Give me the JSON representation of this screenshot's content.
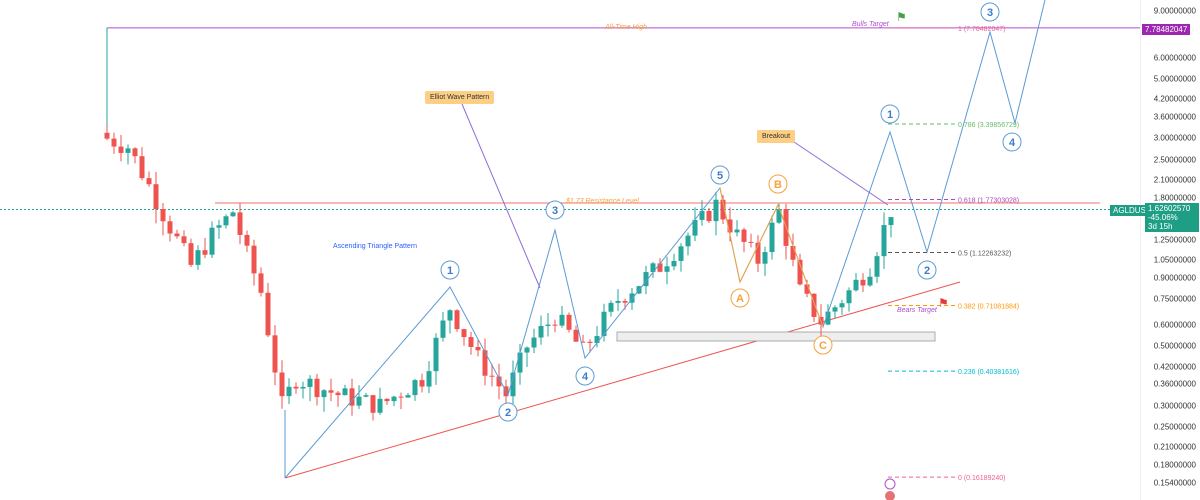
{
  "chart_data": {
    "type": "candlestick",
    "symbol": "AGLDUSD",
    "scale": "log",
    "ylim": [
      0.154,
      9.0
    ],
    "y_ticks": [
      "9.00000000",
      "6.00000000",
      "5.00000000",
      "4.20000000",
      "3.60000000",
      "3.00000000",
      "2.50000000",
      "2.10000000",
      "1.80000000",
      "1.25000000",
      "1.05000000",
      "0.90000000",
      "0.75000000",
      "0.60000000",
      "0.50000000",
      "0.42000000",
      "0.36000000",
      "0.30000000",
      "0.25000000",
      "0.21000000",
      "0.18000000",
      "0.15400000"
    ],
    "y_tick_values": [
      9,
      6,
      5,
      4.2,
      3.6,
      3,
      2.5,
      2.1,
      1.8,
      1.25,
      1.05,
      0.9,
      0.75,
      0.6,
      0.5,
      0.42,
      0.36,
      0.3,
      0.25,
      0.21,
      0.18,
      0.154
    ],
    "price_path": [
      [
        0,
        3.0
      ],
      [
        3,
        2.8
      ],
      [
        6,
        2.0
      ],
      [
        9,
        1.4
      ],
      [
        12,
        1.0
      ],
      [
        15,
        1.3
      ],
      [
        18,
        1.6
      ],
      [
        20,
        1.1
      ],
      [
        22,
        0.8
      ],
      [
        25,
        0.3
      ],
      [
        27,
        0.38
      ],
      [
        33,
        0.33
      ],
      [
        39,
        0.3
      ],
      [
        45,
        0.38
      ],
      [
        49,
        0.7
      ],
      [
        53,
        0.45
      ],
      [
        57,
        0.33
      ],
      [
        60,
        0.5
      ],
      [
        64,
        0.65
      ],
      [
        68,
        0.48
      ],
      [
        73,
        0.75
      ],
      [
        79,
        1.0
      ],
      [
        83,
        1.3
      ],
      [
        87,
        1.7
      ],
      [
        90,
        1.3
      ],
      [
        93,
        1.05
      ],
      [
        96,
        1.6
      ],
      [
        99,
        0.8
      ],
      [
        102,
        0.62
      ],
      [
        106,
        0.8
      ],
      [
        109,
        1.0
      ],
      [
        112,
        1.62
      ]
    ],
    "current_price": {
      "label": "AGLDUSD",
      "value": "1.62602570",
      "change": "-45.06%",
      "countdown": "3d 15h"
    },
    "ath": {
      "label": "All-Time High",
      "value": "7.78482047"
    },
    "fib_levels": [
      {
        "ratio": 1,
        "text": "1 (7.78482047)",
        "price": 7.78482047,
        "color": "#f06292"
      },
      {
        "ratio": 0.786,
        "text": "0.786 (3.39856729)",
        "price": 3.39856729,
        "color": "#66bb6a"
      },
      {
        "ratio": 0.618,
        "text": "0.618 (1.77303028)",
        "price": 1.77303028,
        "color": "#ab47bc"
      },
      {
        "ratio": 0.5,
        "text": "0.5 (1.12263232)",
        "price": 1.12263232,
        "color": "#555555"
      },
      {
        "ratio": 0.382,
        "text": "0.382 (0.71081884)",
        "price": 0.71081884,
        "color": "#ff9800"
      },
      {
        "ratio": 0.236,
        "text": "0.236 (0.40381616)",
        "price": 0.40381616,
        "color": "#00bcd4"
      },
      {
        "ratio": 0,
        "text": "0 (0.16189240)",
        "price": 0.1618924,
        "color": "#f06292"
      }
    ],
    "annotations": {
      "resistance": "$1.73 Resistance Level",
      "triangle": "Ascending Triangle Pattern",
      "elliot": "Elliot Wave Pattern",
      "breakout": "Breakout",
      "bulls": "Bulls Target",
      "bears": "Bears Target"
    },
    "wave_labels": [
      "1",
      "2",
      "3",
      "4",
      "5",
      "A",
      "B",
      "C",
      "1",
      "2",
      "3",
      "4"
    ]
  },
  "colors": {
    "up": "#26a69a",
    "down": "#ef5350",
    "wave": "#5b9bd5",
    "abc": "#f7a13a",
    "ath": "#b04fcf"
  }
}
